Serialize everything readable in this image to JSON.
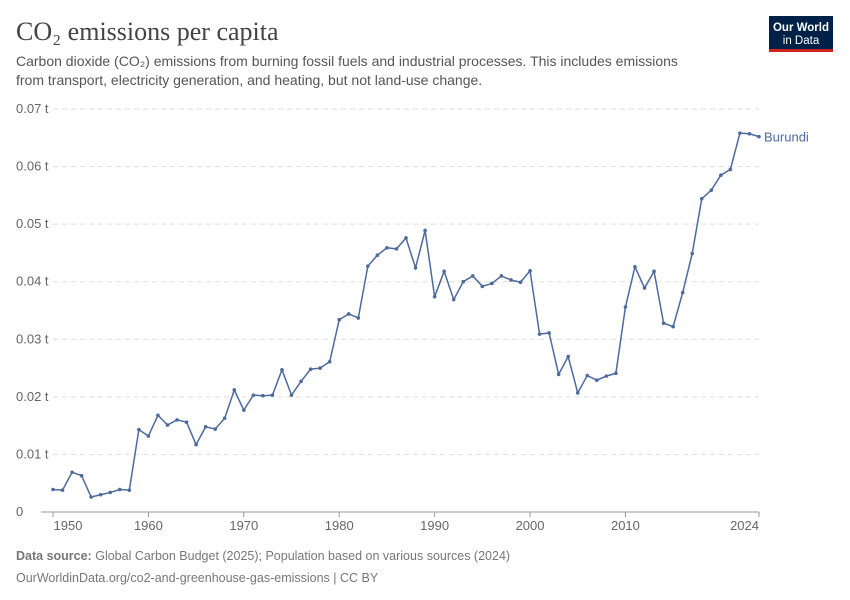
{
  "chart_data": {
    "type": "line",
    "title": "CO₂ emissions per capita",
    "subtitle": [
      "Carbon dioxide (CO₂) emissions from burning fossil fuels and industrial processes. This includes emissions",
      "from transport, electricity generation, and heating, but not land-use change."
    ],
    "logo": [
      "Our World",
      "in Data"
    ],
    "source_label": "Data source:",
    "source": "Global Carbon Budget (2025); Population based on various sources (2024)",
    "footer": "OurWorldinData.org/co2-and-greenhouse-gas-emissions | CC BY",
    "x": [
      1950,
      1951,
      1952,
      1953,
      1954,
      1955,
      1956,
      1957,
      1958,
      1959,
      1960,
      1961,
      1962,
      1963,
      1964,
      1965,
      1966,
      1967,
      1968,
      1969,
      1970,
      1971,
      1972,
      1973,
      1974,
      1975,
      1976,
      1977,
      1978,
      1979,
      1980,
      1981,
      1982,
      1983,
      1984,
      1985,
      1986,
      1987,
      1988,
      1989,
      1990,
      1991,
      1992,
      1993,
      1994,
      1995,
      1996,
      1997,
      1998,
      1999,
      2000,
      2001,
      2002,
      2003,
      2004,
      2005,
      2006,
      2007,
      2008,
      2009,
      2010,
      2011,
      2012,
      2013,
      2014,
      2015,
      2016,
      2017,
      2018,
      2019,
      2020,
      2021,
      2022,
      2023,
      2024
    ],
    "series": [
      {
        "name": "Burundi",
        "color": "#4c6a9c",
        "values": [
          0.0039,
          0.0038,
          0.0069,
          0.0063,
          0.0026,
          0.003,
          0.0034,
          0.0039,
          0.0038,
          0.0143,
          0.0132,
          0.0168,
          0.0151,
          0.016,
          0.0156,
          0.0117,
          0.0148,
          0.0144,
          0.0163,
          0.0212,
          0.0177,
          0.0203,
          0.0202,
          0.0203,
          0.0247,
          0.0203,
          0.0227,
          0.0248,
          0.025,
          0.0261,
          0.0334,
          0.0344,
          0.0337,
          0.0427,
          0.0446,
          0.0459,
          0.0457,
          0.0476,
          0.0424,
          0.0489,
          0.0374,
          0.0418,
          0.0369,
          0.04,
          0.041,
          0.0392,
          0.0397,
          0.041,
          0.0403,
          0.0399,
          0.0419,
          0.0309,
          0.0311,
          0.0239,
          0.027,
          0.0207,
          0.0237,
          0.0229,
          0.0236,
          0.0241,
          0.0356,
          0.0426,
          0.0389,
          0.0418,
          0.0328,
          0.0322,
          0.0381,
          0.0449,
          0.0544,
          0.0559,
          0.0585,
          0.0595,
          0.0658,
          0.0657,
          0.0652
        ]
      }
    ],
    "xlim": [
      1950,
      2024
    ],
    "xticks": [
      1950,
      1960,
      1970,
      1980,
      1990,
      2000,
      2010,
      2024
    ],
    "ylim": [
      0,
      0.07
    ],
    "yticks": [
      0,
      {
        "value": 0.01,
        "label": "0.01 t"
      },
      {
        "value": 0.02,
        "label": "0.02 t"
      },
      {
        "value": 0.03,
        "label": "0.03 t"
      },
      {
        "value": 0.04,
        "label": "0.04 t"
      },
      {
        "value": 0.05,
        "label": "0.05 t"
      },
      {
        "value": 0.06,
        "label": "0.06 t"
      },
      {
        "value": 0.07,
        "label": "0.07 t"
      }
    ],
    "grid": true
  }
}
